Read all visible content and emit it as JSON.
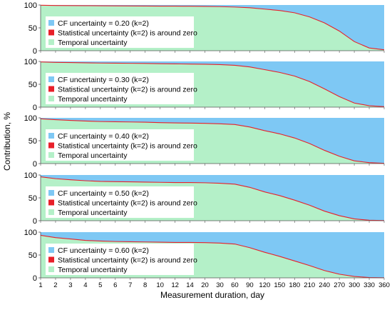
{
  "chart_data": {
    "type": "area",
    "stacked": true,
    "layout": "5 stacked panels",
    "ylabel": "Contribution, %",
    "xlabel": "Measurement duration, day",
    "ylim": [
      0,
      100
    ],
    "yticks": [
      "0",
      "50",
      "100"
    ],
    "x": [
      "1",
      "2",
      "3",
      "4",
      "5",
      "6",
      "7",
      "8",
      "10",
      "12",
      "14",
      "20",
      "30",
      "60",
      "90",
      "120",
      "150",
      "180",
      "210",
      "240",
      "270",
      "300",
      "330",
      "360"
    ],
    "legend_position": "top-left",
    "colors": {
      "cf": "#7ec8f4",
      "statistical": "#e8202a",
      "temporal": "#b4f0c8"
    },
    "panels": [
      {
        "legend": [
          "CF uncertainty = 0.20 (k=2)",
          "Statistical uncertainty (k=2) is around zero",
          "Temporal uncertainty"
        ],
        "temporal": [
          99.5,
          99.0,
          98.8,
          98.6,
          98.4,
          98.2,
          98.0,
          97.8,
          97.6,
          97.5,
          97.3,
          97.0,
          96.5,
          95.5,
          94.0,
          91.0,
          88.0,
          83.0,
          74.0,
          61.0,
          43.0,
          20.0,
          6.0,
          2.0
        ]
      },
      {
        "legend": [
          "CF uncertainty = 0.30 (k=2)",
          "Statistical uncertainty (k=2) is around zero",
          "Temporal uncertainty"
        ],
        "temporal": [
          99.0,
          98.0,
          97.5,
          97.0,
          96.5,
          96.2,
          95.9,
          95.6,
          95.0,
          94.7,
          94.3,
          93.8,
          93.0,
          91.5,
          88.0,
          82.0,
          76.0,
          68.0,
          56.0,
          40.0,
          23.0,
          9.0,
          3.0,
          1.0
        ]
      },
      {
        "legend": [
          "CF uncertainty = 0.40 (k=2)",
          "Statistical uncertainty (k=2) is around zero",
          "Temporal uncertainty"
        ],
        "temporal": [
          98.0,
          96.0,
          94.5,
          93.0,
          92.0,
          91.5,
          91.0,
          90.5,
          89.5,
          89.0,
          88.5,
          88.0,
          87.0,
          85.5,
          80.0,
          72.0,
          65.0,
          56.0,
          44.0,
          29.0,
          16.0,
          6.0,
          2.0,
          0.5
        ]
      },
      {
        "legend": [
          "CF uncertainty = 0.50 (k=2)",
          "Statistical uncertainty (k=2) is around zero",
          "Temporal uncertainty"
        ],
        "temporal": [
          96.0,
          92.0,
          89.5,
          87.5,
          86.0,
          85.5,
          85.0,
          84.5,
          84.0,
          83.5,
          83.5,
          83.0,
          82.0,
          80.0,
          73.0,
          63.0,
          55.0,
          45.0,
          34.0,
          21.0,
          11.0,
          4.0,
          1.0,
          0.3
        ]
      },
      {
        "legend": [
          "CF uncertainty = 0.60 (k=2)",
          "Statistical uncertainty (k=2) is around zero",
          "Temporal uncertainty"
        ],
        "temporal": [
          93.0,
          88.0,
          85.0,
          82.0,
          80.5,
          79.5,
          79.0,
          78.5,
          78.0,
          77.5,
          77.5,
          77.0,
          76.0,
          74.0,
          66.0,
          56.0,
          47.0,
          37.0,
          27.0,
          16.0,
          8.0,
          3.0,
          0.8,
          0.2
        ]
      }
    ]
  }
}
